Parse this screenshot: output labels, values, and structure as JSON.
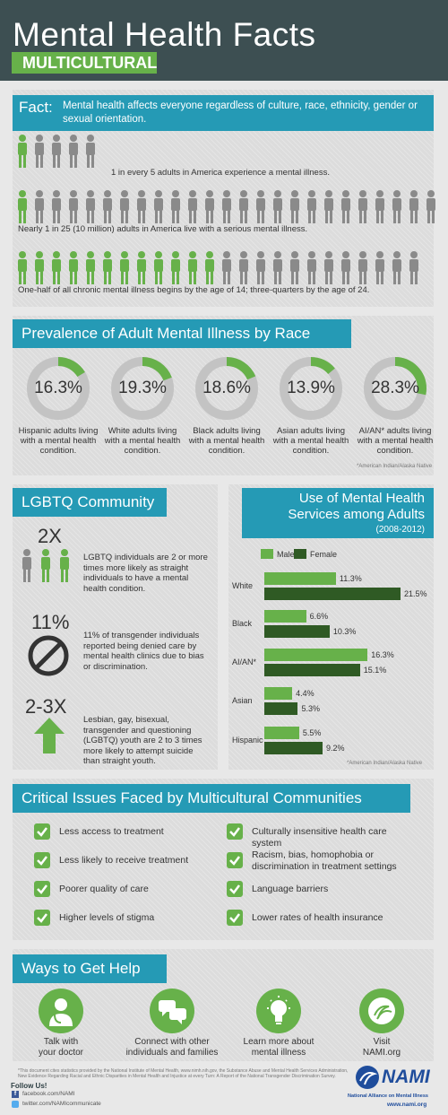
{
  "header": {
    "title": "Mental Health Facts",
    "subtitle": "MULTICULTURAL"
  },
  "fact": {
    "label": "Fact:",
    "text": "Mental health affects everyone regardless of culture, race, ethnicity, gender or sexual orientation."
  },
  "stats": [
    {
      "text": "1 in every 5 adults in America experience a mental illness.",
      "highlighted": 1,
      "total": 5
    },
    {
      "text": "Nearly 1 in 25 (10 million) adults in America live with a serious mental illness.",
      "highlighted": 1,
      "total": 25
    },
    {
      "text": "One-half of all chronic mental illness begins by the age of 14; three-quarters by the age of 24.",
      "highlighted": 12,
      "total": 24
    }
  ],
  "prevalence": {
    "title": "Prevalence of Adult Mental Illness by Race",
    "footnote": "*American Indian/Alaska Native",
    "items": [
      {
        "value": "16.3%",
        "pct": 16.3,
        "label": "Hispanic adults living with a mental health condition."
      },
      {
        "value": "19.3%",
        "pct": 19.3,
        "label": "White adults living with a mental health condition."
      },
      {
        "value": "18.6%",
        "pct": 18.6,
        "label": "Black adults living with a mental health condition."
      },
      {
        "value": "13.9%",
        "pct": 13.9,
        "label": "Asian adults living with a mental health condition."
      },
      {
        "value": "28.3%",
        "pct": 28.3,
        "label": "AI/AN* adults living with a mental health condition."
      }
    ]
  },
  "lgbtq": {
    "title": "LGBTQ Community",
    "items": [
      {
        "big": "2X",
        "text": "LGBTQ individuals are 2 or more times more likely as straight individuals to have a mental health condition."
      },
      {
        "big": "11%",
        "text": "11% of transgender individuals reported being denied care by mental health clinics due to bias or discrimination."
      },
      {
        "big": "2-3X",
        "text": "Lesbian, gay, bisexual, transgender and questioning (LGBTQ) youth are 2 to 3 times more likely to attempt suicide than straight youth."
      }
    ]
  },
  "services": {
    "title_line1": "Use of Mental Health",
    "title_line2": "Services among Adults",
    "years": "(2008-2012)",
    "footnote": "*American Indian/Alaska Native"
  },
  "chart_data": {
    "type": "bar",
    "orientation": "horizontal",
    "categories": [
      "White",
      "Black",
      "AI/AN*",
      "Asian",
      "Hispanic"
    ],
    "series": [
      {
        "name": "Male",
        "values": [
          11.3,
          6.6,
          16.3,
          4.4,
          5.5
        ],
        "labels": [
          "11.3%",
          "6.6%",
          "16.3%",
          "4.4%",
          "5.5%"
        ],
        "color": "#67b14a"
      },
      {
        "name": "Female",
        "values": [
          21.5,
          10.3,
          15.1,
          5.3,
          9.2
        ],
        "labels": [
          "21.5%",
          "10.3%",
          "15.1%",
          "5.3%",
          "9.2%"
        ],
        "color": "#2f5a24"
      }
    ],
    "xlim": [
      0,
      22
    ]
  },
  "issues": {
    "title": "Critical Issues Faced by Multicultural Communities",
    "left": [
      "Less access to treatment",
      "Less likely to receive treatment",
      "Poorer quality of care",
      "Higher levels of stigma"
    ],
    "right": [
      "Culturally insensitive health care system",
      "Racism, bias, homophobia or discrimination in treatment settings",
      "Language barriers",
      "Lower rates of health insurance"
    ]
  },
  "help": {
    "title": "Ways to Get Help",
    "items": [
      {
        "icon": "doctor-icon",
        "label": "Talk with your doctor"
      },
      {
        "icon": "chat-bubbles-icon",
        "label": "Connect with other individuals and families"
      },
      {
        "icon": "lightbulb-icon",
        "label": "Learn more about mental illness"
      },
      {
        "icon": "nami-swirl-icon",
        "label": "Visit NAMI.org"
      }
    ]
  },
  "footer": {
    "sources": "*This document cites statistics provided by the National Institute of Mental Health, www.nimh.nih.gov, the Substance Abuse and Mental Health Services Administration, New Evidence Regarding Racial and Ethnic Disparities in Mental Health and Injustice at every Turn: A Report of the National Transgender Discrimination Survey.",
    "follow": "Follow Us!",
    "facebook": "facebook.com/NAMI",
    "twitter": "twitter.com/NAMIcommunicate",
    "logo": "NAMI",
    "org": "National Alliance on Mental Illness",
    "url": "www.nami.org"
  },
  "colors": {
    "green": "#67b14a",
    "darkgreen": "#2f5a24",
    "teal": "#259ab5",
    "gray": "#8a8a8a",
    "header": "#3d4f52"
  }
}
